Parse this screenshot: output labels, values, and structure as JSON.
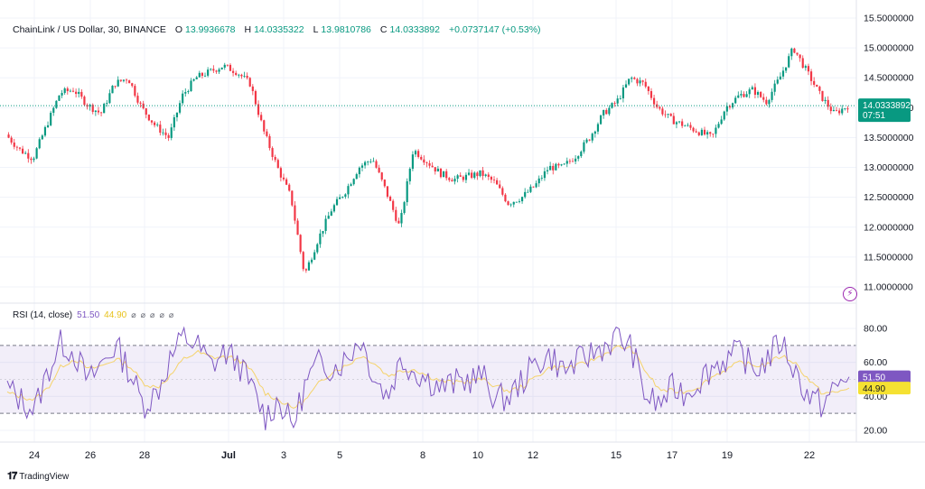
{
  "header": {
    "symbol": "ChainLink / US Dollar, 30, BINANCE",
    "o_label": "O",
    "o_value": "13.9936678",
    "h_label": "H",
    "h_value": "14.0335322",
    "l_label": "L",
    "l_value": "13.9810786",
    "c_label": "C",
    "c_value": "14.0333892",
    "change": "+0.0737147 (+0.53%)"
  },
  "price_badge": {
    "price": "14.0333892",
    "countdown": "07:51"
  },
  "rsi_legend": {
    "label": "RSI (14, close)",
    "rsi_value": "51.50",
    "ma_value": "44.90",
    "icons": [
      "eye-icon",
      "eye-icon",
      "eye-icon",
      "eye-icon",
      "eye-icon"
    ]
  },
  "rsi_badges": {
    "rsi": "51.50",
    "ma": "44.90"
  },
  "branding": "TradingView",
  "colors": {
    "up": "#089981",
    "down": "#f23645",
    "rsi_line": "#7e57c2",
    "rsi_ma": "#f5d36b",
    "rsi_band": "#7e57c2",
    "badge": "#089981"
  },
  "chart_data": [
    {
      "type": "candlestick",
      "title": "ChainLink / US Dollar, 30, BINANCE",
      "y_ticks": [
        "11.0000000",
        "11.5000000",
        "12.0000000",
        "12.5000000",
        "13.0000000",
        "13.5000000",
        "14.0000000",
        "14.5000000",
        "15.0000000",
        "15.5000000"
      ],
      "ylim": [
        11.0,
        15.5
      ],
      "x_ticks": [
        "24",
        "26",
        "28",
        "Jul",
        "3",
        "5",
        "8",
        "10",
        "12",
        "15",
        "17",
        "19",
        "22"
      ],
      "last_price": 14.0333892,
      "series": [
        {
          "x": "23",
          "y": 13.55
        },
        {
          "x": "24",
          "y": 13.3
        },
        {
          "x": "24",
          "y": 13.15
        },
        {
          "x": "25",
          "y": 13.7
        },
        {
          "x": "25",
          "y": 14.25
        },
        {
          "x": "26",
          "y": 14.3
        },
        {
          "x": "26",
          "y": 14.05
        },
        {
          "x": "27",
          "y": 13.9
        },
        {
          "x": "27",
          "y": 14.4
        },
        {
          "x": "28",
          "y": 14.5
        },
        {
          "x": "28",
          "y": 14.0
        },
        {
          "x": "29",
          "y": 13.7
        },
        {
          "x": "30",
          "y": 13.5
        },
        {
          "x": "30",
          "y": 14.2
        },
        {
          "x": "Jul",
          "y": 14.5
        },
        {
          "x": "2",
          "y": 14.6
        },
        {
          "x": "2",
          "y": 14.7
        },
        {
          "x": "3",
          "y": 14.6
        },
        {
          "x": "3",
          "y": 14.4
        },
        {
          "x": "4",
          "y": 13.6
        },
        {
          "x": "4",
          "y": 13.0
        },
        {
          "x": "5",
          "y": 12.5
        },
        {
          "x": "5",
          "y": 11.2
        },
        {
          "x": "5",
          "y": 11.8
        },
        {
          "x": "6",
          "y": 12.3
        },
        {
          "x": "6",
          "y": 12.6
        },
        {
          "x": "7",
          "y": 13.0
        },
        {
          "x": "7",
          "y": 13.15
        },
        {
          "x": "8",
          "y": 12.6
        },
        {
          "x": "8",
          "y": 12.0
        },
        {
          "x": "8",
          "y": 13.3
        },
        {
          "x": "9",
          "y": 13.1
        },
        {
          "x": "9",
          "y": 12.9
        },
        {
          "x": "10",
          "y": 12.8
        },
        {
          "x": "10",
          "y": 12.85
        },
        {
          "x": "11",
          "y": 12.9
        },
        {
          "x": "11",
          "y": 12.75
        },
        {
          "x": "12",
          "y": 12.4
        },
        {
          "x": "12",
          "y": 12.5
        },
        {
          "x": "13",
          "y": 12.7
        },
        {
          "x": "13",
          "y": 13.0
        },
        {
          "x": "14",
          "y": 13.0
        },
        {
          "x": "14",
          "y": 13.2
        },
        {
          "x": "15",
          "y": 13.5
        },
        {
          "x": "15",
          "y": 13.9
        },
        {
          "x": "16",
          "y": 14.1
        },
        {
          "x": "16",
          "y": 14.5
        },
        {
          "x": "17",
          "y": 14.4
        },
        {
          "x": "17",
          "y": 14.0
        },
        {
          "x": "18",
          "y": 13.8
        },
        {
          "x": "18",
          "y": 13.7
        },
        {
          "x": "19",
          "y": 13.6
        },
        {
          "x": "19",
          "y": 13.5
        },
        {
          "x": "20",
          "y": 14.0
        },
        {
          "x": "20",
          "y": 14.2
        },
        {
          "x": "21",
          "y": 14.3
        },
        {
          "x": "21",
          "y": 14.1
        },
        {
          "x": "22",
          "y": 14.5
        },
        {
          "x": "22",
          "y": 15.0
        },
        {
          "x": "22",
          "y": 14.6
        },
        {
          "x": "23",
          "y": 14.2
        },
        {
          "x": "23",
          "y": 13.9
        },
        {
          "x": "23",
          "y": 14.03
        }
      ]
    },
    {
      "type": "line",
      "title": "RSI (14, close)",
      "y_ticks": [
        "20.00",
        "40.00",
        "60.00",
        "80.00"
      ],
      "ylim": [
        20,
        80
      ],
      "band": [
        30,
        70
      ],
      "midline": 50,
      "series": [
        {
          "name": "RSI",
          "values": [
            45,
            38,
            32,
            55,
            72,
            65,
            48,
            60,
            70,
            55,
            35,
            42,
            62,
            75,
            70,
            58,
            66,
            60,
            45,
            28,
            38,
            22,
            48,
            60,
            57,
            62,
            75,
            52,
            40,
            62,
            55,
            50,
            45,
            48,
            50,
            52,
            38,
            40,
            50,
            60,
            64,
            55,
            60,
            65,
            70,
            75,
            68,
            40,
            35,
            45,
            42,
            50,
            58,
            62,
            66,
            55,
            62,
            73,
            55,
            40,
            35,
            45,
            51.5
          ]
        },
        {
          "name": "MA",
          "values": [
            42,
            40,
            38,
            45,
            58,
            62,
            56,
            58,
            62,
            58,
            48,
            45,
            52,
            62,
            66,
            63,
            63,
            62,
            55,
            42,
            38,
            33,
            38,
            48,
            55,
            58,
            64,
            60,
            52,
            55,
            56,
            52,
            49,
            48,
            49,
            50,
            46,
            43,
            46,
            52,
            57,
            57,
            58,
            61,
            65,
            69,
            68,
            55,
            44,
            43,
            43,
            46,
            52,
            56,
            60,
            58,
            59,
            64,
            60,
            50,
            42,
            42,
            44.9
          ]
        }
      ]
    }
  ]
}
